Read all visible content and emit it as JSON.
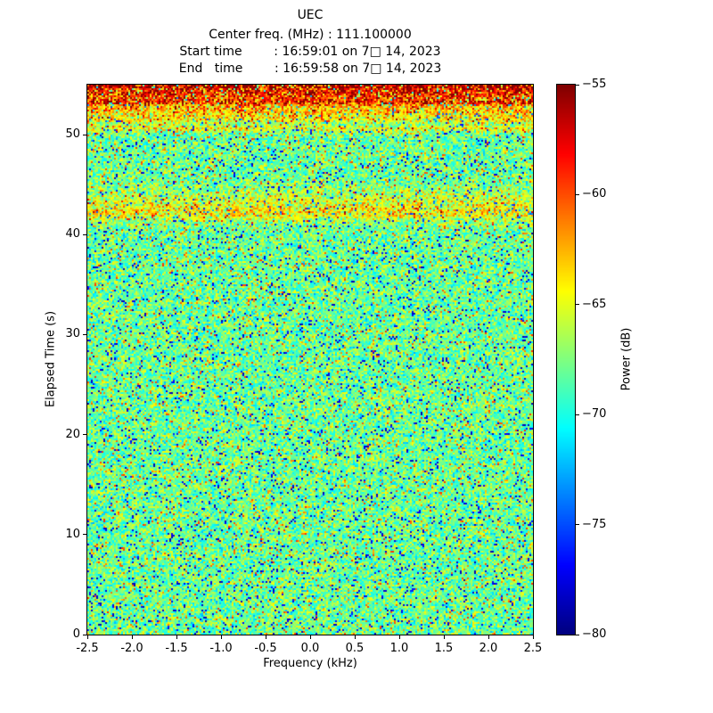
{
  "header": {
    "title": "UEC",
    "line_center": "Center freq. (MHz) : 111.100000",
    "line_start": "Start time        : 16:59:01 on 7□ 14, 2023",
    "line_end": "End   time        : 16:59:58 on 7□ 14, 2023"
  },
  "axes": {
    "x": {
      "label": "Frequency (kHz)",
      "min": -2.5,
      "max": 2.5,
      "tick_values": [
        -2.5,
        -2.0,
        -1.5,
        -1.0,
        -0.5,
        0.0,
        0.5,
        1.0,
        1.5,
        2.0,
        2.5
      ],
      "tick_labels": [
        "-2.5",
        "-2.0",
        "-1.5",
        "-1.0",
        "-0.5",
        "0.0",
        "0.5",
        "1.0",
        "1.5",
        "2.0",
        "2.5"
      ]
    },
    "y": {
      "label": "Elapsed Time (s)",
      "min": 0,
      "max": 55,
      "tick_values": [
        0,
        10,
        20,
        30,
        40,
        50
      ],
      "tick_labels": [
        "0",
        "10",
        "20",
        "30",
        "40",
        "50"
      ]
    }
  },
  "colorbar": {
    "label": "Power (dB)",
    "min": -80,
    "max": -55,
    "tick_values": [
      -55,
      -60,
      -65,
      -70,
      -75,
      -80
    ],
    "tick_labels": [
      "−55",
      "−60",
      "−65",
      "−70",
      "−75",
      "−80"
    ]
  },
  "chart_data": {
    "type": "heatmap",
    "title": "UEC",
    "xlabel": "Frequency (kHz)",
    "ylabel": "Elapsed Time (s)",
    "x_range_khz": [
      -2.5,
      2.5
    ],
    "y_range_s": [
      0,
      55
    ],
    "color_range_db": [
      -80,
      -55
    ],
    "colormap": "jet",
    "colorbar_label": "Power (dB)",
    "noise_floor": {
      "mean_db": -68,
      "spread_db": 5,
      "low_outlier_frac": 0.05,
      "low_outlier_db": -79,
      "low_outlier_spread_db": 3,
      "high_outlier_frac": 0.04,
      "high_outlier_db": -63,
      "high_outlier_spread_db": 4
    },
    "signal_bands": [
      {
        "time_s": 55.0,
        "half_width_s": 0.4,
        "boost_db": 13.0
      },
      {
        "time_s": 54.1,
        "half_width_s": 0.3,
        "boost_db": 8.0
      },
      {
        "time_s": 53.3,
        "half_width_s": 0.35,
        "boost_db": 9.0
      },
      {
        "time_s": 52.4,
        "half_width_s": 0.3,
        "boost_db": 5.0
      },
      {
        "time_s": 51.6,
        "half_width_s": 0.3,
        "boost_db": 4.0
      },
      {
        "time_s": 50.6,
        "half_width_s": 0.25,
        "boost_db": 3.0
      },
      {
        "time_s": 43.0,
        "half_width_s": 1.0,
        "boost_db": 2.5
      },
      {
        "time_s": 42.0,
        "half_width_s": 0.5,
        "boost_db": 2.0
      }
    ],
    "grid": {
      "freq_bins": 250,
      "time_bins": 308
    },
    "seed": 20230714
  }
}
